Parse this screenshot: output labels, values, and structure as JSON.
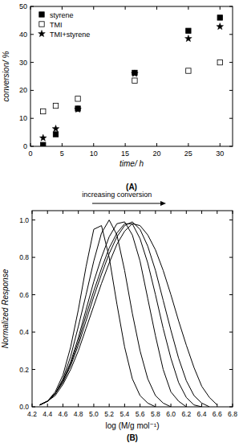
{
  "chart_data": [
    {
      "type": "scatter",
      "title": "(A)",
      "x_label": "time/ h",
      "y_label": "conversion/ %",
      "x": [
        2,
        4,
        7.5,
        16.5,
        25,
        30
      ],
      "series": [
        {
          "name": "styrene",
          "color": "#000000",
          "marker": "filled_square",
          "values": [
            0.5,
            4.3,
            13.5,
            26.3,
            41.3,
            46
          ]
        },
        {
          "name": "TMI",
          "color": "#000000",
          "marker": "open_square",
          "values": [
            12.5,
            14.5,
            17,
            23.5,
            27,
            30
          ]
        },
        {
          "name": "TMI+styrene",
          "color": "#000000",
          "marker": "star",
          "values": [
            3,
            6.3,
            13.2,
            26,
            38.5,
            42.8
          ]
        }
      ],
      "xlim": [
        0,
        32
      ],
      "xticks": [
        0,
        5,
        10,
        15,
        20,
        25,
        30
      ],
      "ylim": [
        0,
        50
      ],
      "yticks": [
        0,
        10,
        20,
        30,
        40,
        50
      ],
      "legend": "top-left",
      "grid": false
    },
    {
      "type": "line",
      "title": "(B)",
      "x_label": "log (M/g mol⁻¹)",
      "y_label": "Normalized Response",
      "annotations": [
        "increasing conversion"
      ],
      "x": [
        4.3,
        4.4,
        4.5,
        4.6,
        4.7,
        4.8,
        4.9,
        5.0,
        5.1,
        5.2,
        5.3,
        5.4,
        5.5,
        5.6,
        5.7,
        5.8,
        5.9,
        6.0,
        6.1,
        6.2,
        6.3,
        6.4,
        6.5,
        6.6,
        6.7
      ],
      "series": [
        {
          "color": "#000000",
          "values": [
            null,
            0.03,
            0.08,
            0.17,
            0.32,
            0.52,
            0.75,
            0.95,
            0.97,
            0.8,
            0.55,
            0.32,
            0.15,
            0.06,
            0.02,
            0.0,
            null,
            null,
            null,
            null,
            null,
            null,
            null,
            null,
            null
          ]
        },
        {
          "color": "#000000",
          "values": [
            0.01,
            0.03,
            0.07,
            0.15,
            0.27,
            0.43,
            0.6,
            0.78,
            0.93,
            1.0,
            0.92,
            0.73,
            0.5,
            0.3,
            0.15,
            0.06,
            0.02,
            0.0,
            null,
            null,
            null,
            null,
            null,
            null,
            null
          ]
        },
        {
          "color": "#000000",
          "values": [
            0.01,
            0.03,
            0.07,
            0.14,
            0.24,
            0.37,
            0.52,
            0.67,
            0.8,
            0.91,
            0.98,
            0.99,
            0.92,
            0.78,
            0.58,
            0.38,
            0.2,
            0.08,
            0.03,
            0.0,
            null,
            null,
            null,
            null,
            null
          ]
        },
        {
          "color": "#000000",
          "values": [
            0.01,
            0.03,
            0.07,
            0.14,
            0.23,
            0.35,
            0.49,
            0.62,
            0.74,
            0.85,
            0.93,
            0.98,
            0.98,
            0.9,
            0.77,
            0.6,
            0.42,
            0.26,
            0.13,
            0.05,
            0.01,
            0.0,
            null,
            null,
            null
          ]
        },
        {
          "color": "#000000",
          "values": [
            0.01,
            0.03,
            0.07,
            0.13,
            0.22,
            0.33,
            0.46,
            0.59,
            0.71,
            0.82,
            0.91,
            0.97,
            0.99,
            0.95,
            0.86,
            0.73,
            0.57,
            0.41,
            0.26,
            0.14,
            0.06,
            0.02,
            0.0,
            null,
            null
          ]
        },
        {
          "color": "#000000",
          "values": [
            0.01,
            0.03,
            0.06,
            0.12,
            0.2,
            0.3,
            0.42,
            0.54,
            0.66,
            0.77,
            0.87,
            0.94,
            0.98,
            0.97,
            0.92,
            0.84,
            0.73,
            0.6,
            0.46,
            0.33,
            0.21,
            0.11,
            0.05,
            0.01,
            null
          ]
        }
      ],
      "xlim": [
        4.2,
        6.8
      ],
      "xticks": [
        4.2,
        4.4,
        4.6,
        4.8,
        {
          "value": 5.0,
          "label": "5.0"
        },
        5.2,
        5.4,
        5.6,
        5.8,
        {
          "value": 6.0,
          "label": "6.0"
        },
        6.2,
        6.4,
        6.6,
        6.8
      ],
      "ylim": [
        0,
        1.05
      ],
      "yticks": [
        {
          "value": 0,
          "label": "0.0"
        },
        0.2,
        0.4,
        0.6,
        0.8,
        {
          "value": 1.0,
          "label": "1.0"
        }
      ],
      "grid": false
    }
  ]
}
